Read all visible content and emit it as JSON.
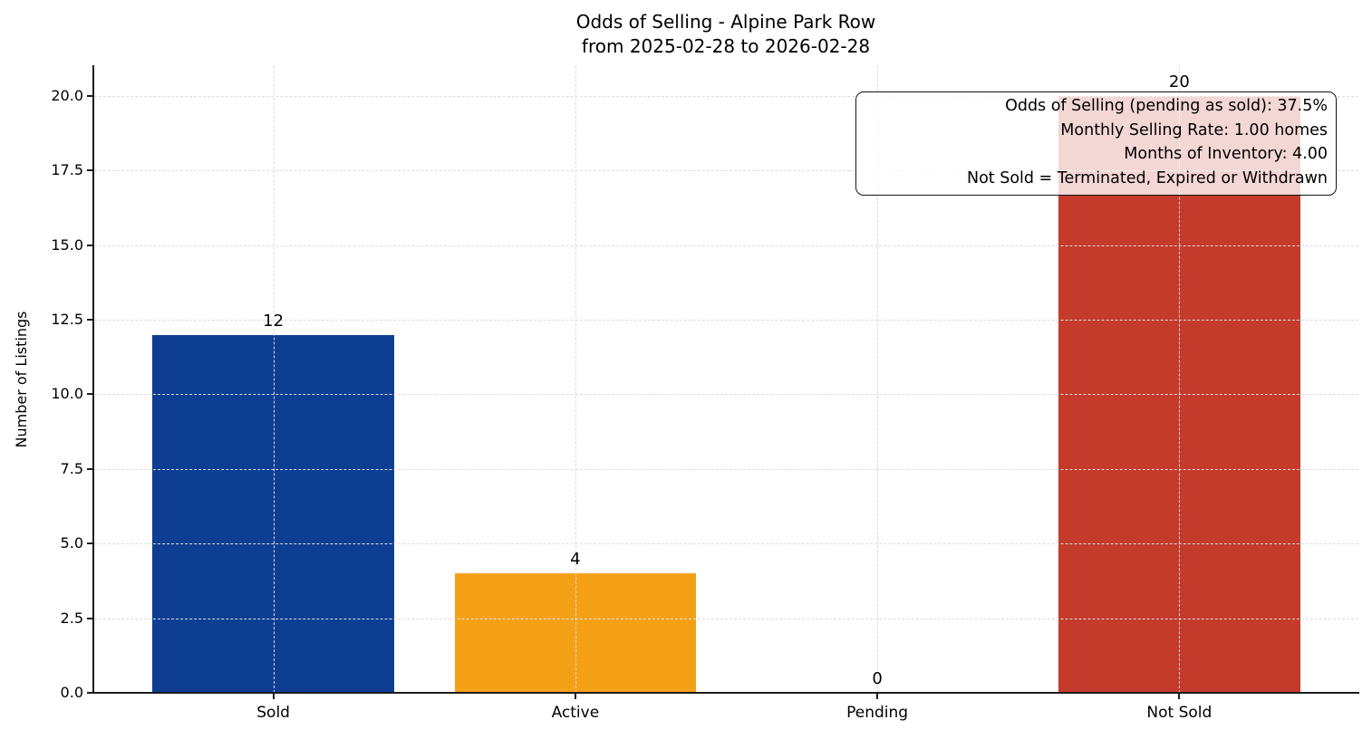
{
  "chart_data": {
    "type": "bar",
    "title": "Odds of Selling - Alpine Park Row",
    "subtitle": "from 2025-02-28 to 2026-02-28",
    "ylabel": "Number of Listings",
    "categories": [
      "Sold",
      "Active",
      "Pending",
      "Not Sold"
    ],
    "values": [
      12,
      4,
      0,
      20
    ],
    "value_labels": [
      "12",
      "4",
      "0",
      "20"
    ],
    "bar_colors": [
      "#0d3e92",
      "#f5a118",
      null,
      "#c43a2b"
    ],
    "ylim": [
      0,
      21
    ],
    "yticks": [
      0.0,
      2.5,
      5.0,
      7.5,
      10.0,
      12.5,
      15.0,
      17.5,
      20.0
    ],
    "ytick_labels": [
      "0.0",
      "2.5",
      "5.0",
      "7.5",
      "10.0",
      "12.5",
      "15.0",
      "17.5",
      "20.0"
    ],
    "grid": true,
    "legend": null,
    "annotation": {
      "lines": [
        "Odds of Selling (pending as sold): 37.5%",
        "Monthly Selling Rate: 1.00 homes",
        "Months of Inventory: 4.00",
        "Not Sold = Terminated, Expired or Withdrawn"
      ]
    },
    "colors": {
      "sold_bar": "#0d3e92",
      "active_bar": "#f5a118",
      "not_sold_bar": "#c43a2b",
      "axis": "#1c1c1c",
      "gridline": "#dcdcdc"
    }
  }
}
